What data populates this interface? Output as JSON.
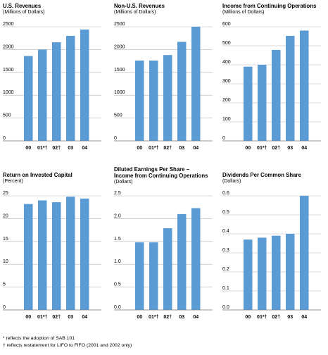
{
  "chart_data": [
    {
      "type": "bar",
      "title": "U.S. Revenues",
      "subtitle": "(Millions of Dollars)",
      "categories": [
        "00",
        "01*†",
        "02†",
        "03",
        "04"
      ],
      "values": [
        1860,
        2000,
        2160,
        2300,
        2440
      ],
      "ylim": [
        0,
        2500
      ],
      "yticks": [
        "0",
        "500",
        "1000",
        "1500",
        "2000",
        "2500"
      ],
      "ytick_values": [
        0,
        500,
        1000,
        1500,
        2000,
        2500
      ],
      "grid": true,
      "color": "#5b9bd5"
    },
    {
      "type": "bar",
      "title": "Non-U.S. Revenues",
      "subtitle": "(Millions of Dollars)",
      "categories": [
        "00",
        "01*†",
        "02†",
        "03",
        "04"
      ],
      "values": [
        1760,
        1760,
        1880,
        2170,
        2500
      ],
      "ylim": [
        0,
        2500
      ],
      "yticks": [
        "0",
        "500",
        "1000",
        "1500",
        "2000",
        "2500"
      ],
      "ytick_values": [
        0,
        500,
        1000,
        1500,
        2000,
        2500
      ],
      "grid": true,
      "color": "#5b9bd5"
    },
    {
      "type": "bar",
      "title": "Income from Continuing Operations",
      "subtitle": "(Millions of Dollars)",
      "categories": [
        "00",
        "01*†",
        "02†",
        "03",
        "04"
      ],
      "values": [
        390,
        400,
        478,
        552,
        580
      ],
      "ylim": [
        0,
        600
      ],
      "yticks": [
        "0",
        "100",
        "200",
        "300",
        "400",
        "500",
        "600"
      ],
      "ytick_values": [
        0,
        100,
        200,
        300,
        400,
        500,
        600
      ],
      "grid": true,
      "color": "#5b9bd5"
    },
    {
      "type": "bar",
      "title": "Return on Invested Capital",
      "subtitle": "(Percent)",
      "categories": [
        "00",
        "01*†",
        "02†",
        "03",
        "04"
      ],
      "values": [
        23.2,
        24.0,
        23.6,
        24.8,
        24.4
      ],
      "ylim": [
        0,
        25
      ],
      "yticks": [
        "0",
        "5",
        "10",
        "15",
        "20",
        "25"
      ],
      "ytick_values": [
        0,
        5,
        10,
        15,
        20,
        25
      ],
      "grid": true,
      "color": "#5b9bd5"
    },
    {
      "type": "bar",
      "title": "Diluted Earnings Per Share –",
      "title2": "Income from Continuing Operations",
      "subtitle": "(Dollars)",
      "categories": [
        "00",
        "01*†",
        "02†",
        "03",
        "04"
      ],
      "values": [
        1.48,
        1.48,
        1.79,
        2.1,
        2.23
      ],
      "ylim": [
        0,
        2.5
      ],
      "yticks": [
        "0.0",
        "0.5",
        "1.0",
        "1.5",
        "2.0",
        "2.5"
      ],
      "ytick_values": [
        0,
        0.5,
        1.0,
        1.5,
        2.0,
        2.5
      ],
      "grid": true,
      "color": "#5b9bd5"
    },
    {
      "type": "bar",
      "title": "Dividends Per Common Share",
      "subtitle": "(Dollars)",
      "categories": [
        "00",
        "01*†",
        "02†",
        "03",
        "04"
      ],
      "values": [
        0.37,
        0.38,
        0.39,
        0.4,
        0.6
      ],
      "ylim": [
        0,
        0.6
      ],
      "yticks": [
        "0.0",
        "0.1",
        "0.2",
        "0.3",
        "0.4",
        "0.5",
        "0.6"
      ],
      "ytick_values": [
        0,
        0.1,
        0.2,
        0.3,
        0.4,
        0.5,
        0.6
      ],
      "grid": true,
      "color": "#5b9bd5"
    }
  ],
  "footnotes": {
    "note1": "*  reflects the adoption of SAB 101",
    "note2": "† reflects restatement for LIFO to FIFO (2001 and 2002 only)"
  }
}
